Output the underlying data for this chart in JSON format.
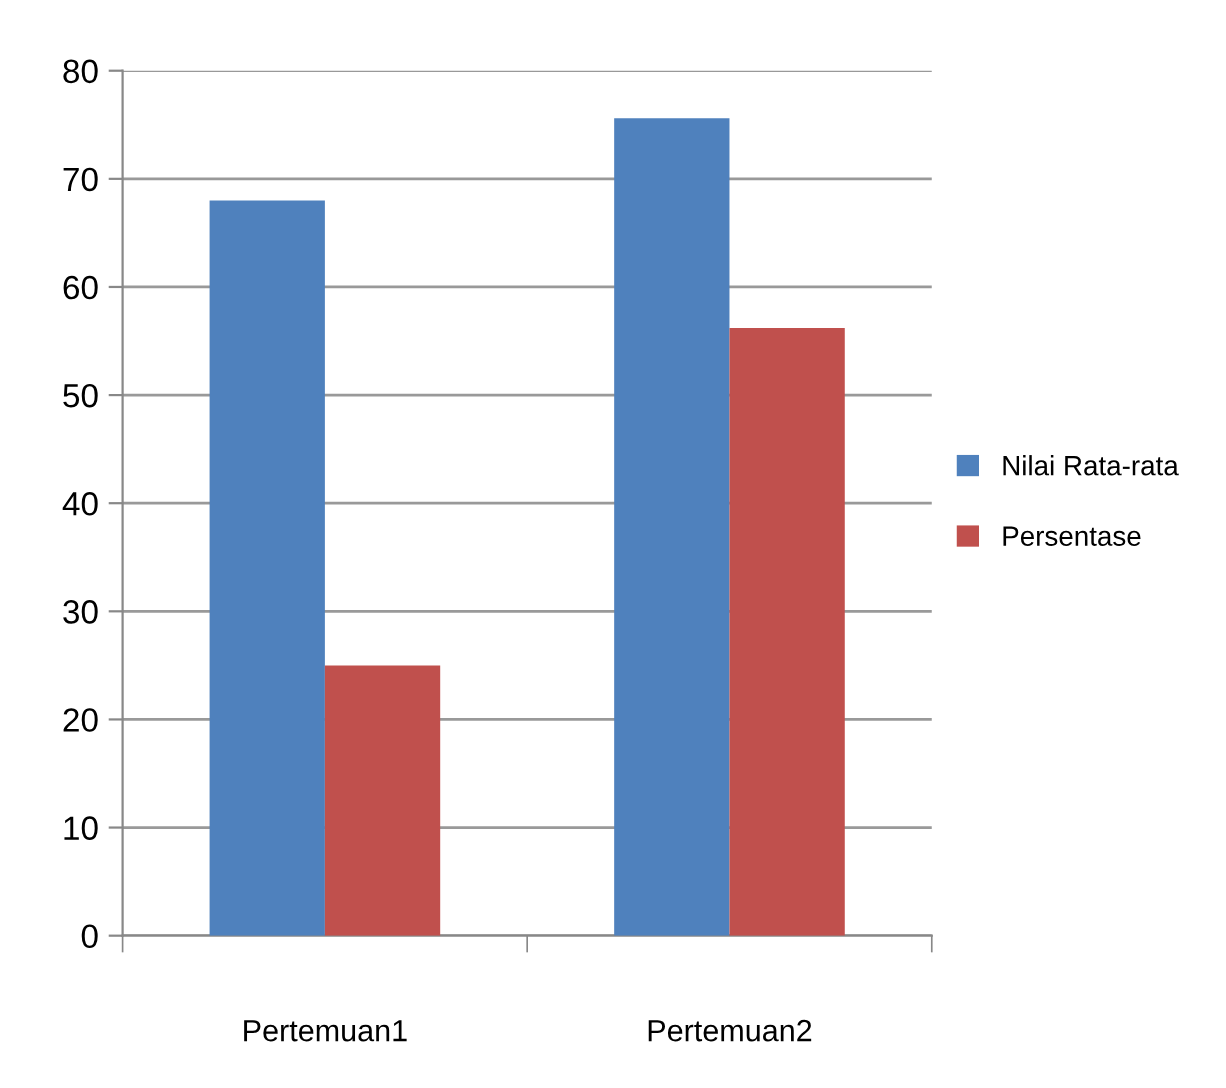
{
  "chart_data": {
    "type": "bar",
    "categories": [
      "Pertemuan1",
      "Pertemuan2"
    ],
    "series": [
      {
        "name": "Nilai Rata-rata",
        "color": "#4f81bd",
        "values": [
          68,
          75.6
        ]
      },
      {
        "name": "Persentase",
        "color": "#c0504d",
        "values": [
          25,
          56.2
        ]
      }
    ],
    "ylim": [
      0,
      80
    ],
    "yticks": [
      0,
      10,
      20,
      30,
      40,
      50,
      60,
      70,
      80
    ],
    "grid": "y",
    "legend": "right"
  }
}
